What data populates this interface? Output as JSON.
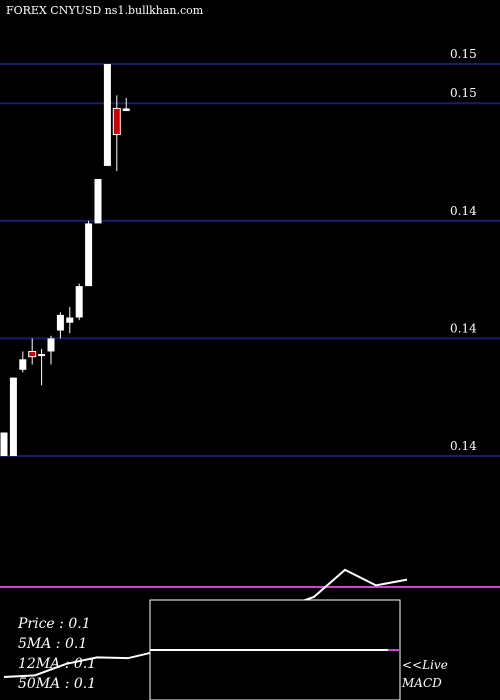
{
  "header": {
    "symbol_line": "FOREX  CNYUSD ns1.bullkhan.com"
  },
  "info": {
    "price": "Price    : 0.1",
    "ma5": "5MA : 0.1",
    "ma12": "12MA : 0.1",
    "ma50": "50MA : 0.1"
  },
  "live": {
    "line1": "<<Live",
    "line2": "MACD"
  },
  "colors": {
    "background": "#000000",
    "grid_line": "#1a1a6e",
    "up_candle": "#ffffff",
    "down_candle": "#cc0000",
    "macd_line": "#ffffff",
    "signal_line": "#cc44cc"
  },
  "chart_data": [
    {
      "type": "candlestick",
      "y_tick_labels": [
        "0.15",
        "0.15",
        "0.14",
        "0.14",
        "0.14"
      ],
      "y_tick_values": [
        0.1515,
        0.15,
        0.1455,
        0.141,
        0.1365
      ],
      "ylim": [
        0.1365,
        0.1515
      ],
      "grid": true,
      "candles": [
        {
          "open": 0.1365,
          "high": 0.1374,
          "low": 0.1365,
          "close": 0.1374
        },
        {
          "open": 0.1365,
          "high": 0.1395,
          "low": 0.1365,
          "close": 0.1395
        },
        {
          "open": 0.1398,
          "high": 0.1405,
          "low": 0.1397,
          "close": 0.1402
        },
        {
          "open": 0.1405,
          "high": 0.141,
          "low": 0.14,
          "close": 0.1403
        },
        {
          "open": 0.1404,
          "high": 0.1406,
          "low": 0.1392,
          "close": 0.1404
        },
        {
          "open": 0.1405,
          "high": 0.1411,
          "low": 0.14,
          "close": 0.141
        },
        {
          "open": 0.1413,
          "high": 0.142,
          "low": 0.141,
          "close": 0.1419
        },
        {
          "open": 0.1416,
          "high": 0.1422,
          "low": 0.1412,
          "close": 0.1418
        },
        {
          "open": 0.1418,
          "high": 0.1431,
          "low": 0.1417,
          "close": 0.143
        },
        {
          "open": 0.143,
          "high": 0.1455,
          "low": 0.143,
          "close": 0.1454
        },
        {
          "open": 0.1454,
          "high": 0.1471,
          "low": 0.1454,
          "close": 0.1471
        },
        {
          "open": 0.1476,
          "high": 0.1515,
          "low": 0.1476,
          "close": 0.1515
        },
        {
          "open": 0.1498,
          "high": 0.1503,
          "low": 0.1474,
          "close": 0.1488
        },
        {
          "open": 0.1497,
          "high": 0.1502,
          "low": 0.1497,
          "close": 0.1498
        }
      ]
    },
    {
      "type": "line",
      "name": "MACD",
      "ylim": [
        -0.0012,
        0.0012
      ],
      "x": [
        1,
        2,
        3,
        4,
        5,
        6,
        7,
        8,
        9,
        10,
        11,
        12,
        13,
        14
      ],
      "macd": [
        -0.0011,
        -0.00108,
        -0.00094,
        -0.00086,
        -0.00087,
        -0.00078,
        -0.0006,
        -0.00059,
        -0.00051,
        -0.00026,
        -0.00012,
        0.00021,
        2e-05,
        9e-05
      ],
      "signal": [
        0,
        0,
        0,
        0,
        0,
        0,
        0,
        0,
        0,
        0,
        0,
        0,
        0,
        0
      ]
    }
  ]
}
